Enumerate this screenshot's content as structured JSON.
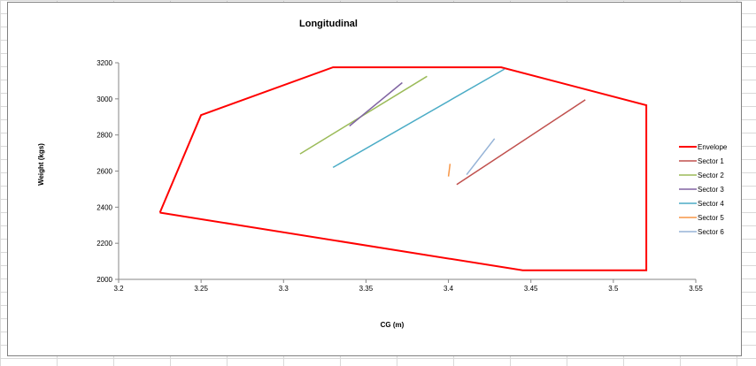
{
  "chart_data": {
    "type": "line",
    "title": "Longitudinal",
    "xlabel": "CG (m)",
    "ylabel": "Weight (kgs)",
    "xlim": [
      3.2,
      3.55
    ],
    "ylim": [
      2000,
      3200
    ],
    "xticks": [
      "3.2",
      "3.25",
      "3.3",
      "3.35",
      "3.4",
      "3.45",
      "3.5",
      "3.55"
    ],
    "yticks": [
      "2000",
      "2200",
      "2400",
      "2600",
      "2800",
      "3000",
      "3200"
    ],
    "grid": false,
    "legend_position": "right",
    "series": [
      {
        "name": "Envelope",
        "color": "#ff0000",
        "width": 2,
        "points": [
          [
            3.225,
            2370
          ],
          [
            3.25,
            2910
          ],
          [
            3.33,
            3175
          ],
          [
            3.432,
            3175
          ],
          [
            3.52,
            2965
          ],
          [
            3.52,
            2050
          ],
          [
            3.445,
            2050
          ],
          [
            3.225,
            2370
          ]
        ]
      },
      {
        "name": "Sector 1",
        "color": "#c0504d",
        "width": 1.5,
        "points": [
          [
            3.405,
            2525
          ],
          [
            3.483,
            2995
          ]
        ]
      },
      {
        "name": "Sector 2",
        "color": "#9bbb59",
        "width": 1.5,
        "points": [
          [
            3.31,
            2695
          ],
          [
            3.387,
            3125
          ]
        ]
      },
      {
        "name": "Sector 3",
        "color": "#8064a2",
        "width": 1.5,
        "points": [
          [
            3.34,
            2850
          ],
          [
            3.372,
            3090
          ]
        ]
      },
      {
        "name": "Sector 4",
        "color": "#4bacc6",
        "width": 1.5,
        "points": [
          [
            3.33,
            2620
          ],
          [
            3.434,
            3165
          ]
        ]
      },
      {
        "name": "Sector 5",
        "color": "#f79646",
        "width": 1.5,
        "points": [
          [
            3.4,
            2570
          ],
          [
            3.401,
            2640
          ]
        ]
      },
      {
        "name": "Sector 6",
        "color": "#95b3d7",
        "width": 1.5,
        "points": [
          [
            3.411,
            2580
          ],
          [
            3.428,
            2780
          ]
        ]
      }
    ]
  }
}
